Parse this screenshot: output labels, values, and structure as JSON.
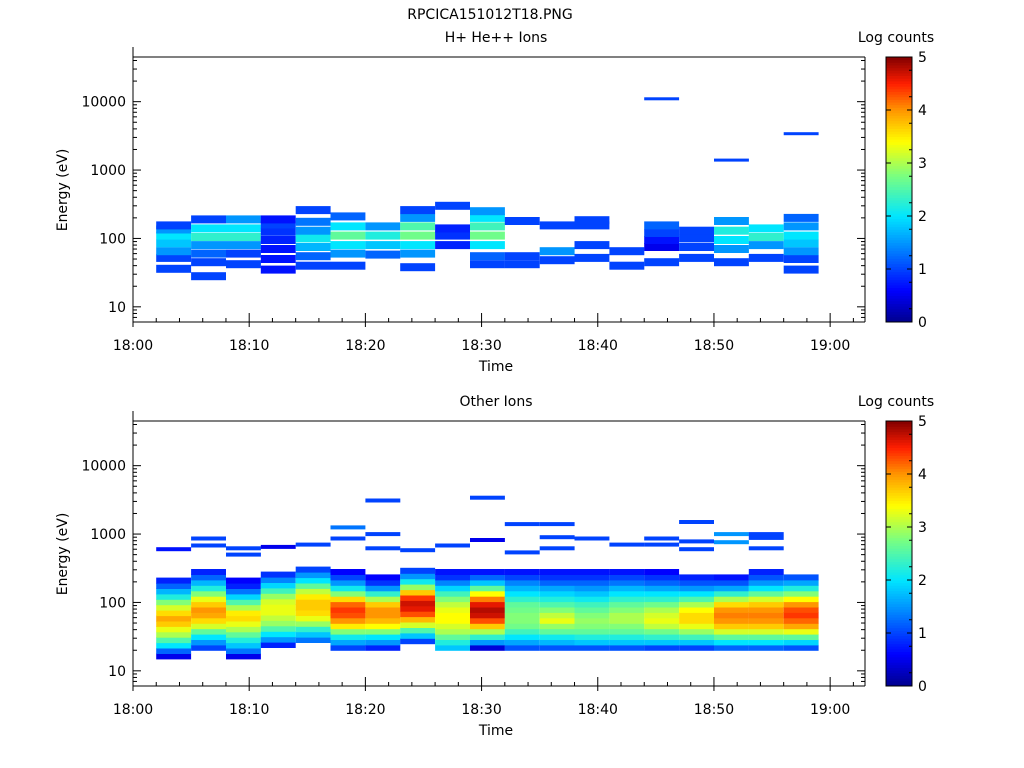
{
  "figure": {
    "title": "RPCICA151012T18.PNG"
  },
  "chart_data": [
    {
      "type": "heatmap",
      "title": "H+ He++ Ions",
      "xlabel": "Time",
      "ylabel": "Energy (eV)",
      "x_ticks": [
        "18:00",
        "18:10",
        "18:20",
        "18:30",
        "18:40",
        "18:50",
        "19:00"
      ],
      "x_range_minutes": [
        0,
        63
      ],
      "y_scale": "log",
      "ylim": [
        6,
        45000
      ],
      "y_ticks": [
        "10",
        "100",
        "1000",
        "10000"
      ],
      "colorbar": {
        "label": "Log counts",
        "range": [
          0,
          5
        ],
        "ticks": [
          "0",
          "1",
          "2",
          "3",
          "4",
          "5"
        ]
      },
      "cells": [
        [
          2,
          36,
          1
        ],
        [
          2,
          52,
          1
        ],
        [
          2,
          65,
          1.5
        ],
        [
          2,
          85,
          1.8
        ],
        [
          2,
          110,
          2
        ],
        [
          2,
          135,
          1.5
        ],
        [
          2,
          155,
          1
        ],
        [
          5,
          28,
          1
        ],
        [
          5,
          45,
          1
        ],
        [
          5,
          60,
          1.2
        ],
        [
          5,
          80,
          1.5
        ],
        [
          5,
          105,
          2.3
        ],
        [
          5,
          140,
          2
        ],
        [
          5,
          190,
          1
        ],
        [
          8,
          42,
          1
        ],
        [
          8,
          60,
          1
        ],
        [
          8,
          80,
          1.5
        ],
        [
          8,
          105,
          2.3
        ],
        [
          8,
          140,
          2
        ],
        [
          8,
          190,
          1.5
        ],
        [
          11,
          35,
          0.7
        ],
        [
          11,
          50,
          0.7
        ],
        [
          11,
          70,
          0.7
        ],
        [
          11,
          95,
          0.8
        ],
        [
          11,
          125,
          0.9
        ],
        [
          11,
          160,
          1
        ],
        [
          11,
          190,
          0.7
        ],
        [
          14,
          40,
          1
        ],
        [
          14,
          55,
          1.2
        ],
        [
          14,
          75,
          1.7
        ],
        [
          14,
          100,
          2.1
        ],
        [
          14,
          130,
          1.5
        ],
        [
          14,
          175,
          1.3
        ],
        [
          14,
          260,
          1
        ],
        [
          17,
          40,
          1
        ],
        [
          17,
          60,
          1.5
        ],
        [
          17,
          80,
          2
        ],
        [
          17,
          110,
          2.6
        ],
        [
          17,
          150,
          2
        ],
        [
          17,
          210,
          1.2
        ],
        [
          20,
          58,
          1.2
        ],
        [
          20,
          80,
          1.8
        ],
        [
          20,
          110,
          2.2
        ],
        [
          20,
          150,
          1.5
        ],
        [
          23,
          38,
          1
        ],
        [
          23,
          60,
          1.5
        ],
        [
          23,
          80,
          2
        ],
        [
          23,
          110,
          2.7
        ],
        [
          23,
          150,
          2.5
        ],
        [
          23,
          200,
          1.5
        ],
        [
          23,
          260,
          1
        ],
        [
          26,
          80,
          0.8
        ],
        [
          26,
          110,
          0.9
        ],
        [
          26,
          140,
          0.8
        ],
        [
          26,
          300,
          1
        ],
        [
          29,
          42,
          1
        ],
        [
          29,
          55,
          1.2
        ],
        [
          29,
          80,
          2
        ],
        [
          29,
          110,
          2.7
        ],
        [
          29,
          150,
          2.4
        ],
        [
          29,
          200,
          2
        ],
        [
          29,
          250,
          1.5
        ],
        [
          32,
          42,
          1
        ],
        [
          32,
          55,
          1
        ],
        [
          32,
          180,
          1
        ],
        [
          35,
          48,
          1
        ],
        [
          35,
          65,
          1.5
        ],
        [
          35,
          155,
          1
        ],
        [
          38,
          52,
          1
        ],
        [
          38,
          80,
          1
        ],
        [
          38,
          155,
          1
        ],
        [
          38,
          185,
          1
        ],
        [
          41,
          40,
          1
        ],
        [
          41,
          65,
          1
        ],
        [
          44,
          45,
          1
        ],
        [
          44,
          75,
          0.5
        ],
        [
          44,
          95,
          0.7
        ],
        [
          44,
          120,
          1
        ],
        [
          44,
          155,
          1.2
        ],
        [
          44,
          11000,
          1
        ],
        [
          47,
          52,
          1
        ],
        [
          47,
          75,
          1
        ],
        [
          47,
          100,
          1
        ],
        [
          47,
          130,
          1
        ],
        [
          50,
          45,
          1
        ],
        [
          50,
          70,
          1.5
        ],
        [
          50,
          95,
          2
        ],
        [
          50,
          130,
          2.2
        ],
        [
          50,
          180,
          1.5
        ],
        [
          50,
          1400,
          1
        ],
        [
          53,
          52,
          1
        ],
        [
          53,
          80,
          1.5
        ],
        [
          53,
          105,
          2.3
        ],
        [
          53,
          140,
          2
        ],
        [
          56,
          35,
          1
        ],
        [
          56,
          50,
          1
        ],
        [
          56,
          65,
          1.5
        ],
        [
          56,
          85,
          1.8
        ],
        [
          56,
          110,
          2
        ],
        [
          56,
          150,
          1.5
        ],
        [
          56,
          200,
          1.2
        ],
        [
          56,
          3400,
          1
        ]
      ]
    },
    {
      "type": "heatmap",
      "title": "Other Ions",
      "xlabel": "Time",
      "ylabel": "Energy (eV)",
      "x_ticks": [
        "18:00",
        "18:10",
        "18:20",
        "18:30",
        "18:40",
        "18:50",
        "19:00"
      ],
      "x_range_minutes": [
        0,
        63
      ],
      "y_scale": "log",
      "ylim": [
        6,
        45000
      ],
      "y_ticks": [
        "10",
        "100",
        "1000",
        "10000"
      ],
      "colorbar": {
        "label": "Log counts",
        "range": [
          0,
          5
        ],
        "ticks": [
          "0",
          "1",
          "2",
          "3",
          "4",
          "5"
        ]
      },
      "upper_hits": [
        [
          2,
          600,
          0.7
        ],
        [
          5,
          860,
          1
        ],
        [
          5,
          680,
          1
        ],
        [
          8,
          620,
          1
        ],
        [
          8,
          500,
          1
        ],
        [
          11,
          650,
          0.5
        ],
        [
          14,
          700,
          1
        ],
        [
          17,
          1250,
          1.3
        ],
        [
          17,
          860,
          1
        ],
        [
          20,
          3100,
          1
        ],
        [
          20,
          1000,
          1
        ],
        [
          20,
          620,
          1
        ],
        [
          23,
          580,
          1
        ],
        [
          26,
          680,
          1
        ],
        [
          29,
          3400,
          1
        ],
        [
          29,
          820,
          0.5
        ],
        [
          32,
          1400,
          1
        ],
        [
          32,
          540,
          1
        ],
        [
          35,
          1400,
          1
        ],
        [
          35,
          900,
          1
        ],
        [
          35,
          620,
          1
        ],
        [
          38,
          860,
          1
        ],
        [
          41,
          700,
          1
        ],
        [
          44,
          860,
          1
        ],
        [
          44,
          700,
          1
        ],
        [
          47,
          1500,
          1
        ],
        [
          47,
          780,
          1
        ],
        [
          47,
          600,
          1
        ],
        [
          50,
          1000,
          1.5
        ],
        [
          50,
          760,
          1.5
        ],
        [
          53,
          1000,
          1
        ],
        [
          53,
          880,
          1
        ],
        [
          53,
          620,
          1
        ]
      ],
      "columns": [
        {
          "t": 2,
          "lo": 15,
          "vals": [
            0.5,
            1.2,
            2.0,
            2.5,
            3.0,
            3.3,
            3.7,
            3.9,
            3.6,
            3.2,
            2.8,
            2.2,
            1.7,
            1.2,
            0.8
          ]
        },
        {
          "t": 5,
          "lo": 20,
          "vals": [
            1.0,
            1.5,
            2.0,
            2.6,
            3.2,
            3.6,
            3.9,
            4.0,
            3.7,
            3.3,
            2.8,
            2.2,
            1.7,
            1.2,
            0.8
          ]
        },
        {
          "t": 8,
          "lo": 15,
          "vals": [
            0.5,
            1.3,
            1.8,
            2.2,
            2.6,
            3.0,
            3.3,
            3.6,
            3.5,
            3.0,
            2.5,
            1.9,
            1.3,
            0.8,
            0.6
          ]
        },
        {
          "t": 11,
          "lo": 22,
          "vals": [
            0.8,
            1.5,
            2.0,
            2.5,
            2.9,
            3.1,
            3.3,
            3.3,
            3.2,
            2.9,
            2.4,
            1.9,
            1.4,
            0.9
          ]
        },
        {
          "t": 14,
          "lo": 26,
          "vals": [
            1.3,
            1.8,
            2.3,
            2.9,
            3.3,
            3.6,
            3.7,
            3.7,
            3.5,
            3.1,
            2.6,
            2.0,
            1.5,
            1.0
          ]
        },
        {
          "t": 17,
          "lo": 20,
          "vals": [
            1.0,
            1.6,
            2.1,
            2.8,
            3.5,
            4.0,
            4.3,
            4.4,
            4.2,
            3.6,
            2.8,
            2.1,
            1.5,
            1.0,
            0.6
          ]
        },
        {
          "t": 20,
          "lo": 20,
          "vals": [
            0.8,
            1.5,
            2.0,
            2.8,
            3.4,
            3.8,
            4.0,
            4.0,
            3.7,
            3.0,
            2.3,
            1.5,
            0.9,
            0.6
          ]
        },
        {
          "t": 23,
          "lo": 25,
          "vals": [
            1.0,
            1.8,
            2.5,
            3.2,
            3.8,
            4.3,
            4.6,
            4.7,
            4.4,
            3.7,
            2.9,
            2.1,
            1.5,
            1.0
          ]
        },
        {
          "t": 26,
          "lo": 20,
          "vals": [
            1.8,
            2.2,
            2.6,
            3.0,
            3.2,
            3.4,
            3.4,
            3.3,
            3.1,
            2.8,
            2.4,
            1.9,
            1.4,
            0.9,
            0.7
          ]
        },
        {
          "t": 29,
          "lo": 20,
          "vals": [
            0.4,
            1.5,
            2.3,
            3.0,
            3.7,
            4.3,
            4.7,
            4.8,
            4.6,
            4.1,
            3.4,
            2.6,
            1.8,
            1.2,
            0.7
          ]
        },
        {
          "t": 32,
          "lo": 20,
          "vals": [
            1.1,
            1.6,
            2.0,
            2.4,
            2.7,
            2.8,
            2.8,
            2.7,
            2.6,
            2.3,
            2.0,
            1.7,
            1.4,
            1.0,
            0.7
          ]
        },
        {
          "t": 35,
          "lo": 20,
          "vals": [
            1.1,
            1.7,
            2.1,
            2.6,
            2.9,
            3.3,
            3.1,
            2.8,
            2.5,
            2.2,
            1.9,
            1.6,
            1.2,
            0.9,
            0.7
          ]
        },
        {
          "t": 38,
          "lo": 20,
          "vals": [
            1.1,
            1.8,
            2.2,
            2.6,
            2.8,
            2.9,
            2.8,
            2.6,
            2.4,
            2.1,
            1.8,
            1.5,
            1.2,
            0.9,
            0.7
          ]
        },
        {
          "t": 41,
          "lo": 20,
          "vals": [
            1.1,
            1.8,
            2.2,
            2.6,
            2.8,
            3.0,
            3.0,
            2.8,
            2.6,
            2.3,
            2.0,
            1.7,
            1.3,
            1.0,
            0.7
          ]
        },
        {
          "t": 44,
          "lo": 20,
          "vals": [
            1.0,
            1.8,
            2.3,
            2.7,
            3.1,
            3.3,
            3.2,
            3.0,
            2.7,
            2.3,
            2.0,
            1.6,
            1.2,
            0.9,
            0.6
          ]
        },
        {
          "t": 47,
          "lo": 20,
          "vals": [
            1.0,
            1.8,
            2.4,
            2.9,
            3.3,
            3.6,
            3.6,
            3.4,
            3.0,
            2.5,
            2.0,
            1.5,
            1.1,
            0.8
          ]
        },
        {
          "t": 50,
          "lo": 20,
          "vals": [
            1.2,
            2.0,
            2.6,
            3.2,
            3.7,
            4.0,
            4.1,
            4.0,
            3.6,
            3.0,
            2.3,
            1.6,
            1.1,
            0.7
          ]
        },
        {
          "t": 53,
          "lo": 20,
          "vals": [
            1.2,
            2.0,
            2.6,
            3.2,
            3.7,
            4.0,
            4.1,
            4.0,
            3.7,
            3.2,
            2.6,
            2.0,
            1.5,
            1.1,
            0.8
          ]
        },
        {
          "t": 56,
          "lo": 20,
          "vals": [
            1.1,
            1.9,
            2.6,
            3.3,
            3.9,
            4.2,
            4.4,
            4.3,
            4.0,
            3.4,
            2.8,
            2.2,
            1.6,
            1.1
          ]
        }
      ]
    }
  ]
}
